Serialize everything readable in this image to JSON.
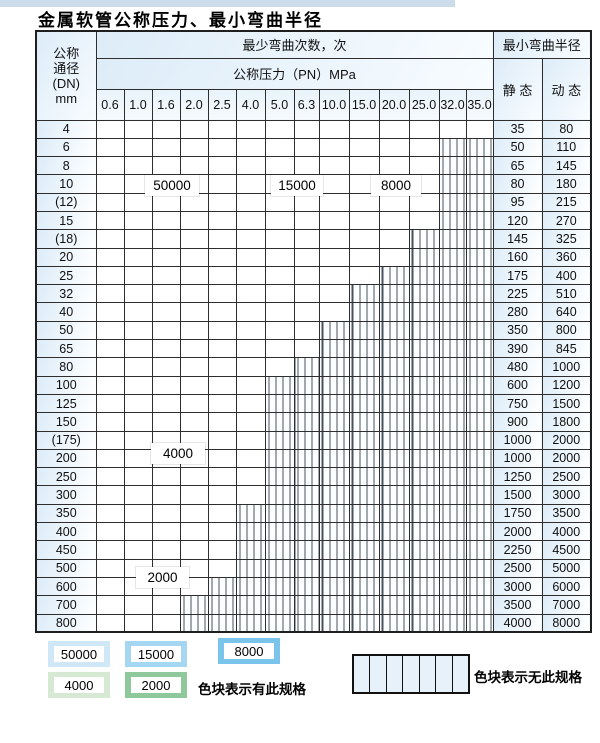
{
  "title": "金属软管公称压力、最小弯曲半径",
  "header": {
    "dn_lines": [
      "公称",
      "通径",
      "(DN)",
      "mm"
    ],
    "bend_cycles": "最少弯曲次数，次",
    "pressure": "公称压力（PN）MPa",
    "pressure_cols": [
      "0.6",
      "1.0",
      "1.6",
      "2.0",
      "2.5",
      "4.0",
      "5.0",
      "6.3",
      "10.0",
      "15.0",
      "20.0",
      "25.0",
      "32.0",
      "35.0"
    ],
    "radius": "最小弯曲半径",
    "static": "静 态",
    "dynamic": "动 态"
  },
  "colors": {
    "blue50": "#cfe7f7",
    "blue15": "#a5d6f2",
    "blue8": "#7ac3ea",
    "green4": "#d6e9d3",
    "green2": "#8fc89a",
    "strip": "#ccdcea"
  },
  "rows": [
    {
      "dn": "4",
      "static": "35",
      "dynamic": "80",
      "filled": 14,
      "zone": "blue"
    },
    {
      "dn": "6",
      "static": "50",
      "dynamic": "110",
      "filled": 12,
      "zone": "blue"
    },
    {
      "dn": "8",
      "static": "65",
      "dynamic": "145",
      "filled": 12,
      "zone": "blue"
    },
    {
      "dn": "10",
      "static": "80",
      "dynamic": "180",
      "filled": 12,
      "zone": "blue"
    },
    {
      "dn": "(12)",
      "static": "95",
      "dynamic": "215",
      "filled": 12,
      "zone": "blue"
    },
    {
      "dn": "15",
      "static": "120",
      "dynamic": "270",
      "filled": 12,
      "zone": "blue"
    },
    {
      "dn": "(18)",
      "static": "145",
      "dynamic": "325",
      "filled": 11,
      "zone": "blue"
    },
    {
      "dn": "20",
      "static": "160",
      "dynamic": "360",
      "filled": 11,
      "zone": "blue"
    },
    {
      "dn": "25",
      "static": "175",
      "dynamic": "400",
      "filled": 10,
      "zone": "blue"
    },
    {
      "dn": "32",
      "static": "225",
      "dynamic": "510",
      "filled": 9,
      "zone": "blue"
    },
    {
      "dn": "40",
      "static": "280",
      "dynamic": "640",
      "filled": 9,
      "zone": "blue"
    },
    {
      "dn": "50",
      "static": "350",
      "dynamic": "800",
      "filled": 8,
      "zone": "blue"
    },
    {
      "dn": "65",
      "static": "390",
      "dynamic": "845",
      "filled": 8,
      "zone": "blue"
    },
    {
      "dn": "80",
      "static": "480",
      "dynamic": "1000",
      "filled": 7,
      "zone": "blue"
    },
    {
      "dn": "100",
      "static": "600",
      "dynamic": "1200",
      "filled": 6,
      "zone": "green_light"
    },
    {
      "dn": "125",
      "static": "750",
      "dynamic": "1500",
      "filled": 6,
      "zone": "green_light"
    },
    {
      "dn": "150",
      "static": "900",
      "dynamic": "1800",
      "filled": 6,
      "zone": "green_light"
    },
    {
      "dn": "(175)",
      "static": "1000",
      "dynamic": "2000",
      "filled": 6,
      "zone": "green_light"
    },
    {
      "dn": "200",
      "static": "1000",
      "dynamic": "2000",
      "filled": 6,
      "zone": "green_light"
    },
    {
      "dn": "250",
      "static": "1250",
      "dynamic": "2500",
      "filled": 6,
      "zone": "green_light"
    },
    {
      "dn": "300",
      "static": "1500",
      "dynamic": "3000",
      "filled": 6,
      "zone": "green_light"
    },
    {
      "dn": "350",
      "static": "1750",
      "dynamic": "3500",
      "filled": 5,
      "zone": "green_dark"
    },
    {
      "dn": "400",
      "static": "2000",
      "dynamic": "4000",
      "filled": 5,
      "zone": "green_dark"
    },
    {
      "dn": "450",
      "static": "2250",
      "dynamic": "4500",
      "filled": 5,
      "zone": "green_dark"
    },
    {
      "dn": "500",
      "static": "2500",
      "dynamic": "5000",
      "filled": 5,
      "zone": "green_dark"
    },
    {
      "dn": "600",
      "static": "3000",
      "dynamic": "6000",
      "filled": 4,
      "zone": "green_dark"
    },
    {
      "dn": "700",
      "static": "3500",
      "dynamic": "7000",
      "filled": 3,
      "zone": "green_dark"
    },
    {
      "dn": "800",
      "static": "4000",
      "dynamic": "8000",
      "filled": 3,
      "zone": "green_dark"
    }
  ],
  "overlays": {
    "b50000": "50000",
    "b15000": "15000",
    "b8000": "8000",
    "g4000": "4000",
    "g2000": "2000"
  },
  "legend": {
    "items": [
      {
        "label": "50000"
      },
      {
        "label": "15000"
      },
      {
        "label": "8000"
      },
      {
        "label": "4000"
      },
      {
        "label": "2000"
      }
    ],
    "has_spec_label": "色块表示有此规格",
    "no_spec_label": "色块表示无此规格"
  },
  "chart_data": {
    "type": "table",
    "title": "金属软管公称压力、最小弯曲半径",
    "pressure_columns_PN_MPa": [
      0.6,
      1.0,
      1.6,
      2.0,
      2.5,
      4.0,
      5.0,
      6.3,
      10.0,
      15.0,
      20.0,
      25.0,
      32.0,
      35.0
    ],
    "bend_cycle_color_zones": {
      "50000": "PN 0.6–2.5 (light blue)",
      "15000": "PN 4.0–6.3 (medium blue)",
      "8000": "PN 10.0–35.0 (dark blue)",
      "4000": "green rows DN 100–300 (light green)",
      "2000": "green rows DN 350–800 (dark green)"
    },
    "rows": [
      {
        "dn": "4",
        "max_pn": 35.0,
        "static_radius": 35,
        "dynamic_radius": 80
      },
      {
        "dn": "6",
        "max_pn": 25.0,
        "static_radius": 50,
        "dynamic_radius": 110
      },
      {
        "dn": "8",
        "max_pn": 25.0,
        "static_radius": 65,
        "dynamic_radius": 145
      },
      {
        "dn": "10",
        "max_pn": 25.0,
        "static_radius": 80,
        "dynamic_radius": 180
      },
      {
        "dn": "(12)",
        "max_pn": 25.0,
        "static_radius": 95,
        "dynamic_radius": 215
      },
      {
        "dn": "15",
        "max_pn": 25.0,
        "static_radius": 120,
        "dynamic_radius": 270
      },
      {
        "dn": "(18)",
        "max_pn": 20.0,
        "static_radius": 145,
        "dynamic_radius": 325
      },
      {
        "dn": "20",
        "max_pn": 20.0,
        "static_radius": 160,
        "dynamic_radius": 360
      },
      {
        "dn": "25",
        "max_pn": 15.0,
        "static_radius": 175,
        "dynamic_radius": 400
      },
      {
        "dn": "32",
        "max_pn": 10.0,
        "static_radius": 225,
        "dynamic_radius": 510
      },
      {
        "dn": "40",
        "max_pn": 10.0,
        "static_radius": 280,
        "dynamic_radius": 640
      },
      {
        "dn": "50",
        "max_pn": 6.3,
        "static_radius": 350,
        "dynamic_radius": 800
      },
      {
        "dn": "65",
        "max_pn": 6.3,
        "static_radius": 390,
        "dynamic_radius": 845
      },
      {
        "dn": "80",
        "max_pn": 5.0,
        "static_radius": 480,
        "dynamic_radius": 1000
      },
      {
        "dn": "100",
        "max_pn": 4.0,
        "static_radius": 600,
        "dynamic_radius": 1200
      },
      {
        "dn": "125",
        "max_pn": 4.0,
        "static_radius": 750,
        "dynamic_radius": 1500
      },
      {
        "dn": "150",
        "max_pn": 4.0,
        "static_radius": 900,
        "dynamic_radius": 1800
      },
      {
        "dn": "(175)",
        "max_pn": 4.0,
        "static_radius": 1000,
        "dynamic_radius": 2000
      },
      {
        "dn": "200",
        "max_pn": 4.0,
        "static_radius": 1000,
        "dynamic_radius": 2000
      },
      {
        "dn": "250",
        "max_pn": 4.0,
        "static_radius": 1250,
        "dynamic_radius": 2500
      },
      {
        "dn": "300",
        "max_pn": 4.0,
        "static_radius": 1500,
        "dynamic_radius": 3000
      },
      {
        "dn": "350",
        "max_pn": 2.5,
        "static_radius": 1750,
        "dynamic_radius": 3500
      },
      {
        "dn": "400",
        "max_pn": 2.5,
        "static_radius": 2000,
        "dynamic_radius": 4000
      },
      {
        "dn": "450",
        "max_pn": 2.5,
        "static_radius": 2250,
        "dynamic_radius": 4500
      },
      {
        "dn": "500",
        "max_pn": 2.5,
        "static_radius": 2500,
        "dynamic_radius": 5000
      },
      {
        "dn": "600",
        "max_pn": 2.0,
        "static_radius": 3000,
        "dynamic_radius": 6000
      },
      {
        "dn": "700",
        "max_pn": 1.6,
        "static_radius": 3500,
        "dynamic_radius": 7000
      },
      {
        "dn": "800",
        "max_pn": 1.6,
        "static_radius": 4000,
        "dynamic_radius": 8000
      }
    ]
  }
}
